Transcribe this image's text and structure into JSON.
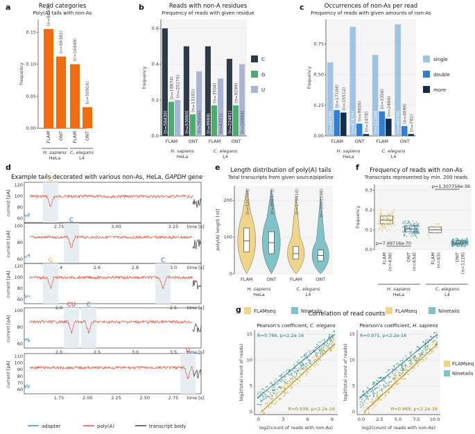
{
  "panels": {
    "a": {
      "letter": "a",
      "title": "Read categories",
      "subtitle": "Poly(A) tails with non-As",
      "ylabel": "frequency",
      "yticks": [
        "0.00",
        "0.05",
        "0.10",
        "0.15"
      ],
      "xticks": [
        "FLAM",
        "ONT",
        "FLAM",
        "ONT"
      ],
      "groups": [
        "H. sapiens\nHeLa",
        "C. elegans\nL4"
      ],
      "n_labels": [
        "(n=80934)",
        "(n=99382)",
        "(n=16949)",
        "(n=50916)"
      ],
      "color": "#f26b0f"
    },
    "b": {
      "letter": "b",
      "title": "Reads with non-A residues",
      "subtitle": "Frequency of reads with given residue",
      "ylabel": "frequency",
      "yticks": [
        "0.0",
        "0.2",
        "0.4",
        "0.6"
      ],
      "xticks": [
        "FLAM",
        "ONT",
        "FLAM",
        "ONT"
      ],
      "groups": [
        "H. sapiens",
        "HeLa",
        "C. elegans",
        "L4"
      ],
      "legend": [
        {
          "label": "C",
          "color": "#2e3a47"
        },
        {
          "label": "G",
          "color": "#4dab6f"
        },
        {
          "label": "U",
          "color": "#aab4d6"
        }
      ],
      "n_labels": [
        "(n=58430)",
        "(n=18874)",
        "(n=20276)",
        "(n=53060)",
        "(n=13102)",
        "(n=38404)",
        "(n=9988)",
        "(n=3504)",
        "(n=6311)",
        "(n=22481)",
        "(n=9299)",
        "(n=20864)"
      ]
    },
    "c": {
      "letter": "c",
      "title": "Occurrences of non-As per read",
      "subtitle": "Frequency of reads with given amounts of non-As",
      "ylabel": "frequency",
      "yticks": [
        "0.00",
        "0.25",
        "0.50",
        "0.75"
      ],
      "xticks": [
        "FLAM",
        "ONT",
        "FLAM",
        "ONT"
      ],
      "groups": [
        "H. sapiens",
        "HeLa",
        "C. elegans",
        "L4"
      ],
      "legend": [
        {
          "label": "single",
          "color": "#9fc3e2"
        },
        {
          "label": "double",
          "color": "#2f7fd4"
        },
        {
          "label": "more",
          "color": "#132c4a"
        }
      ],
      "n_labels": [
        "(n=48338)",
        "(n=17104)",
        "(n=15512)",
        "(n=87976)",
        "(n=9928)",
        "(n=1478)",
        "(n=11109)",
        "(n=3356)",
        "(n=2484)",
        "(n=46038)",
        "(n=4096)",
        "(n=782)"
      ]
    },
    "d": {
      "letter": "d",
      "title": "Example tails decorated with various non-As, HeLa, ",
      "title_gene": "GAPDH",
      "title_end": " gene",
      "ylabel": "current [pA]",
      "xlabel": "time [s]",
      "traces": [
        {
          "marks": [
            {
              "t": "G",
              "c": "#f0a830"
            }
          ],
          "yticks": [
            "60",
            "80",
            "100",
            "120"
          ],
          "xticks": [
            "2.75",
            "3.00",
            "3.25"
          ]
        },
        {
          "marks": [
            {
              "t": "C",
              "c": "#3a63c7"
            }
          ],
          "yticks": [
            "60",
            "80",
            "100"
          ],
          "xticks": [
            "2.4",
            "2.6",
            "2.8",
            "3.0"
          ]
        },
        {
          "marks": [
            {
              "t": "G",
              "c": "#f0a830"
            },
            {
              "t": "C",
              "c": "#3a63c7"
            }
          ],
          "yticks": [
            "60",
            "80",
            "100",
            "120"
          ],
          "xticks": [
            "2.0",
            "2.5"
          ]
        },
        {
          "marks": [
            {
              "t": "CU",
              "c": "#d43333"
            },
            {
              "t": "C",
              "c": "#3a63c7"
            }
          ],
          "yticks": [
            "60",
            "80",
            "100"
          ],
          "xticks": [
            "2.0",
            "2.5",
            "3.0",
            "3.5"
          ]
        },
        {
          "marks": [
            {
              "t": "U",
              "c": "#d43333"
            }
          ],
          "yticks": [
            "60",
            "70",
            "80",
            "90",
            "100",
            "110"
          ],
          "xticks": [
            "1.75",
            "2.00",
            "2.25",
            "2.50",
            "2.75"
          ]
        }
      ],
      "legend": [
        {
          "label": "adapter",
          "color": "#3b8fd1"
        },
        {
          "label": "poly(A)",
          "color": "#e8533b"
        },
        {
          "label": "transcript body",
          "color": "#444444"
        }
      ]
    },
    "e": {
      "letter": "e",
      "title": "Length distribution of poly(A) tails",
      "subtitle": "Total transcripts from given source/pipeline",
      "ylabel": "poly(A) length [nt]",
      "yticks": [
        "0",
        "100",
        "200"
      ],
      "xticks": [
        "FLAM",
        "ONT",
        "FLAM",
        "ONT"
      ],
      "groups": [
        "H. sapiens",
        "HeLa",
        "C. elegans",
        "L4"
      ],
      "n_labels": [
        "(n=520704)",
        "(n=896475)",
        "(n=170410)",
        "(n=1561598)"
      ],
      "legend": [
        {
          "label": "FLAMseq",
          "color": "#efd58a"
        },
        {
          "label": "Ninetails",
          "color": "#7fc3c9"
        }
      ]
    },
    "f": {
      "letter": "f",
      "title": "Frequency of reads with non-As",
      "subtitle": "Transcripts represented by min. 200 reads",
      "ylabel": "frequency",
      "yticks": [
        "0.0",
        "0.1",
        "0.2",
        "0.3"
      ],
      "xticks": [
        "FLAM",
        "ONT",
        "FLAM",
        "ONT"
      ],
      "xsub": [
        "(n=438)",
        "(n=654)",
        "(n=65)",
        "(n=1126)"
      ],
      "groups": [
        "H. sapiens",
        "HeLa",
        "C. elegans",
        "L4"
      ],
      "p_top": "p=1.307756e-36",
      "p_bottom": "p=7.99716e-70",
      "legend": [
        {
          "label": "FLAMseq",
          "color": "#efd58a"
        },
        {
          "label": "Ninetails",
          "color": "#7fc3c9"
        }
      ]
    },
    "g": {
      "letter": "g",
      "title": "Correlation of read counts",
      "left_title": "Pearson's coefficient, ",
      "left_species": "C. elegans",
      "right_title": "Pearson's coefficient, ",
      "right_species": "H. sapiens",
      "ylabel": "log2(total count of reads)",
      "xlabel": "log2(count of reads with non-As)",
      "left_stats": [
        "R=0.786, p<2.2e-16",
        "R=0.939, p<2.2e-16"
      ],
      "right_stats": [
        "R=0.971, p<2.2e-16",
        "R=0.969, p<2.2e-16"
      ],
      "left_yticks": [
        "0",
        "5",
        "10",
        "15"
      ],
      "left_xticks": [
        "0",
        "3",
        "6",
        "9"
      ],
      "right_yticks": [
        "0",
        "5",
        "10",
        "15"
      ],
      "right_xticks": [
        "0.0",
        "2.5",
        "5.0",
        "7.5",
        "10.0"
      ],
      "legend": [
        {
          "label": "FLAMseq",
          "color": "#efd58a"
        },
        {
          "label": "Ninetails",
          "color": "#7fc3c9"
        }
      ]
    }
  },
  "chart_data": [
    {
      "type": "bar",
      "id": "a",
      "categories": [
        "H. sapiens FLAM",
        "H. sapiens ONT",
        "C. elegans FLAM",
        "C. elegans ONT"
      ],
      "values": [
        0.155,
        0.112,
        0.1,
        0.033
      ],
      "ylim": [
        0,
        0.17
      ]
    },
    {
      "type": "bar",
      "id": "b",
      "categories": [
        "H. sapiens FLAM",
        "H. sapiens ONT",
        "C. elegans FLAM",
        "C. elegans ONT"
      ],
      "series": [
        {
          "name": "C",
          "values": [
            0.6,
            0.5,
            0.5,
            0.43
          ]
        },
        {
          "name": "G",
          "values": [
            0.19,
            0.12,
            0.17,
            0.17
          ]
        },
        {
          "name": "U",
          "values": [
            0.2,
            0.36,
            0.32,
            0.4
          ]
        }
      ],
      "ylim": [
        0,
        0.65
      ]
    },
    {
      "type": "bar",
      "id": "c",
      "categories": [
        "H. sapiens FLAM",
        "H. sapiens ONT",
        "C. elegans FLAM",
        "C. elegans ONT"
      ],
      "series": [
        {
          "name": "single",
          "values": [
            0.6,
            0.89,
            0.66,
            0.91
          ]
        },
        {
          "name": "double",
          "values": [
            0.21,
            0.1,
            0.2,
            0.08
          ]
        },
        {
          "name": "more",
          "values": [
            0.19,
            0.015,
            0.14,
            0.015
          ]
        }
      ],
      "ylim": [
        0,
        0.95
      ]
    },
    {
      "type": "box",
      "id": "e",
      "categories": [
        "H. sapiens FLAM",
        "H. sapiens ONT",
        "C. elegans FLAM",
        "C. elegans ONT"
      ],
      "medians": [
        90,
        85,
        55,
        50
      ],
      "q1": [
        60,
        55,
        40,
        35
      ],
      "q3": [
        125,
        115,
        75,
        65
      ],
      "ylim": [
        0,
        240
      ]
    },
    {
      "type": "box",
      "id": "f",
      "categories": [
        "H. sapiens FLAM",
        "H. sapiens ONT",
        "C. elegans FLAM",
        "C. elegans ONT"
      ],
      "medians": [
        0.15,
        0.105,
        0.1,
        0.035
      ],
      "q1": [
        0.13,
        0.09,
        0.085,
        0.028
      ],
      "q3": [
        0.17,
        0.12,
        0.115,
        0.043
      ],
      "ylim": [
        0,
        0.33
      ]
    },
    {
      "type": "scatter",
      "id": "g-left",
      "series": [
        {
          "name": "FLAMseq",
          "r": 0.939
        },
        {
          "name": "Ninetails",
          "r": 0.786
        }
      ],
      "xlim": [
        0,
        11
      ],
      "ylim": [
        0,
        17
      ]
    },
    {
      "type": "scatter",
      "id": "g-right",
      "series": [
        {
          "name": "FLAMseq",
          "r": 0.969
        },
        {
          "name": "Ninetails",
          "r": 0.971
        }
      ],
      "xlim": [
        0,
        11
      ],
      "ylim": [
        0,
        17
      ]
    }
  ]
}
